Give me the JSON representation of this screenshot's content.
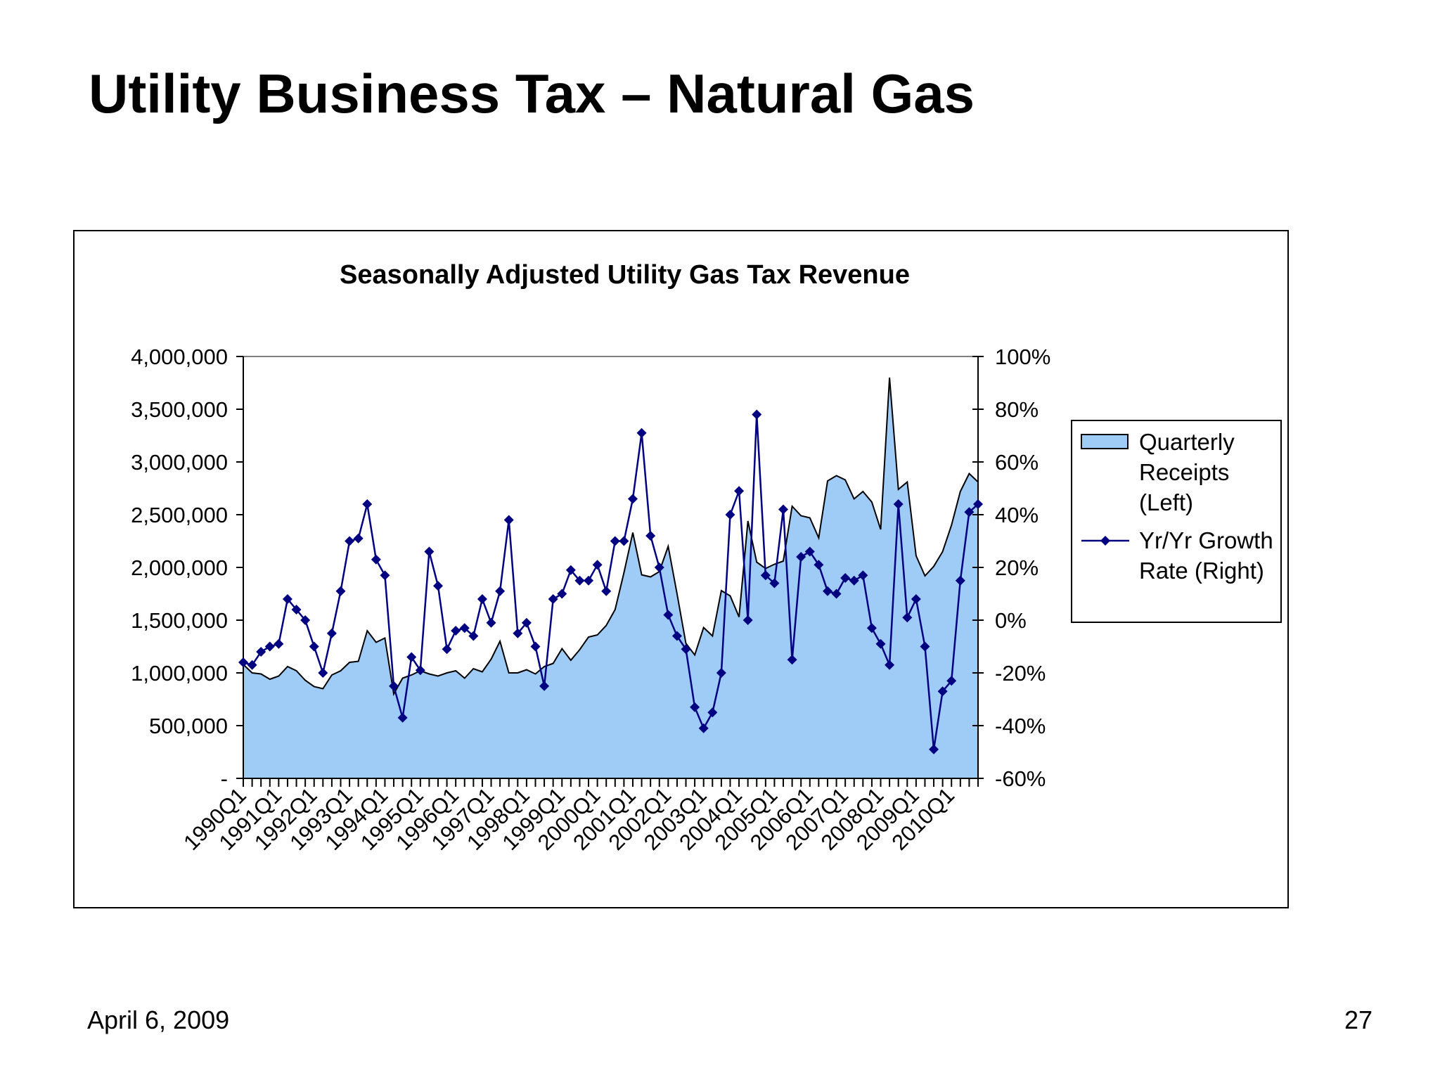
{
  "slide": {
    "title": "Utility Business Tax – Natural Gas",
    "date": "April 6, 2009",
    "page_number": "27"
  },
  "colors": {
    "area_fill": "#9FCBF7",
    "area_stroke": "#000000",
    "line": "#000080",
    "marker": "#000080"
  },
  "chart_data": {
    "type": "area+line",
    "title": "Seasonally Adjusted Utility Gas Tax Revenue",
    "left_axis": {
      "ylim": [
        0,
        4000000
      ],
      "ticks": [
        0,
        500000,
        1000000,
        1500000,
        2000000,
        2500000,
        3000000,
        3500000,
        4000000
      ],
      "tick_labels": [
        "-",
        "500,000",
        "1,000,000",
        "1,500,000",
        "2,000,000",
        "2,500,000",
        "3,000,000",
        "3,500,000",
        "4,000,000"
      ]
    },
    "right_axis": {
      "ylim": [
        -0.6,
        1.0
      ],
      "ticks": [
        -0.6,
        -0.4,
        -0.2,
        0.0,
        0.2,
        0.4,
        0.6,
        0.8,
        1.0
      ],
      "tick_labels": [
        "-60%",
        "-40%",
        "-20%",
        "0%",
        "20%",
        "40%",
        "60%",
        "80%",
        "100%"
      ]
    },
    "x_labels": [
      "1990Q1",
      "1991Q1",
      "1992Q1",
      "1993Q1",
      "1994Q1",
      "1995Q1",
      "1996Q1",
      "1997Q1",
      "1998Q1",
      "1999Q1",
      "2000Q1",
      "2001Q1",
      "2002Q1",
      "2003Q1",
      "2004Q1",
      "2005Q1",
      "2006Q1",
      "2007Q1",
      "2008Q1",
      "2009Q1",
      "2010Q1"
    ],
    "quarters_count": 84,
    "legend": [
      {
        "label": "Quarterly Receipts (Left)",
        "lines": [
          "Quarterly",
          "Receipts",
          "(Left)"
        ],
        "type": "area"
      },
      {
        "label": "Yr/Yr Growth Rate (Right)",
        "lines": [
          "Yr/Yr Growth",
          "Rate (Right)"
        ],
        "type": "line"
      }
    ],
    "series": [
      {
        "name": "Quarterly Receipts (Left)",
        "axis": "left",
        "values": [
          1080000,
          1000000,
          990000,
          940000,
          970000,
          1060000,
          1020000,
          930000,
          870000,
          850000,
          980000,
          1020000,
          1100000,
          1110000,
          1400000,
          1290000,
          1330000,
          800000,
          950000,
          980000,
          1020000,
          990000,
          970000,
          1000000,
          1020000,
          950000,
          1040000,
          1010000,
          1130000,
          1300000,
          1000000,
          1000000,
          1030000,
          990000,
          1060000,
          1090000,
          1230000,
          1120000,
          1220000,
          1340000,
          1360000,
          1450000,
          1600000,
          1950000,
          2330000,
          1930000,
          1910000,
          1960000,
          2200000,
          1750000,
          1280000,
          1170000,
          1430000,
          1350000,
          1780000,
          1730000,
          1530000,
          2440000,
          2050000,
          1990000,
          2030000,
          2060000,
          2580000,
          2490000,
          2470000,
          2280000,
          2820000,
          2870000,
          2830000,
          2650000,
          2720000,
          2620000,
          2360000,
          3800000,
          2740000,
          2810000,
          2110000,
          1920000,
          2010000,
          2150000,
          2400000,
          2720000,
          2890000,
          2810000
        ],
        "note": "84 quarters 1990Q1–2010Q4; last value approximate"
      },
      {
        "name": "Yr/Yr Growth Rate (Right)",
        "axis": "right",
        "values": [
          -0.16,
          -0.17,
          -0.12,
          -0.1,
          -0.09,
          0.08,
          0.04,
          0.0,
          -0.1,
          -0.2,
          -0.05,
          0.11,
          0.3,
          0.31,
          0.44,
          0.23,
          0.17,
          -0.25,
          -0.37,
          -0.14,
          -0.19,
          0.26,
          0.13,
          -0.11,
          -0.04,
          -0.03,
          -0.06,
          0.08,
          -0.01,
          0.11,
          0.38,
          -0.05,
          -0.01,
          -0.1,
          -0.25,
          0.08,
          0.1,
          0.19,
          0.15,
          0.15,
          0.21,
          0.11,
          0.3,
          0.3,
          0.46,
          0.71,
          0.32,
          0.2,
          0.02,
          -0.06,
          -0.11,
          -0.33,
          -0.41,
          -0.35,
          -0.2,
          0.4,
          0.49,
          0.0,
          0.78,
          0.17,
          0.14,
          0.42,
          -0.15,
          0.24,
          0.26,
          0.21,
          0.11,
          0.1,
          0.16,
          0.15,
          0.17,
          -0.03,
          -0.09,
          -0.17,
          0.44,
          0.01,
          0.08,
          -0.1,
          -0.49,
          -0.27,
          -0.23,
          0.15,
          0.41,
          0.44
        ],
        "note": "84 quarters; last point near end of axis"
      }
    ]
  }
}
